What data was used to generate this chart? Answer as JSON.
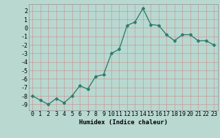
{
  "x": [
    0,
    1,
    2,
    3,
    4,
    5,
    6,
    7,
    8,
    9,
    10,
    11,
    12,
    13,
    14,
    15,
    16,
    17,
    18,
    19,
    20,
    21,
    22,
    23
  ],
  "y": [
    -8.0,
    -8.5,
    -9.0,
    -8.3,
    -8.8,
    -8.0,
    -6.8,
    -7.2,
    -5.7,
    -5.5,
    -3.0,
    -2.5,
    0.3,
    0.7,
    2.3,
    0.4,
    0.3,
    -0.8,
    -1.5,
    -0.8,
    -0.8,
    -1.5,
    -1.5,
    -2.0
  ],
  "line_color": "#2e7d6e",
  "marker": "D",
  "marker_size": 2.0,
  "bg_color": "#b8d8d0",
  "grid_color": "#d08080",
  "xlabel": "Humidex (Indice chaleur)",
  "xlim": [
    -0.5,
    23.5
  ],
  "ylim": [
    -9.7,
    2.8
  ],
  "yticks": [
    2,
    1,
    0,
    -1,
    -2,
    -3,
    -4,
    -5,
    -6,
    -7,
    -8,
    -9
  ],
  "xticks": [
    0,
    1,
    2,
    3,
    4,
    5,
    6,
    7,
    8,
    9,
    10,
    11,
    12,
    13,
    14,
    15,
    16,
    17,
    18,
    19,
    20,
    21,
    22,
    23
  ],
  "xlabel_fontsize": 6.5,
  "tick_fontsize": 6.0,
  "line_width": 1.0
}
